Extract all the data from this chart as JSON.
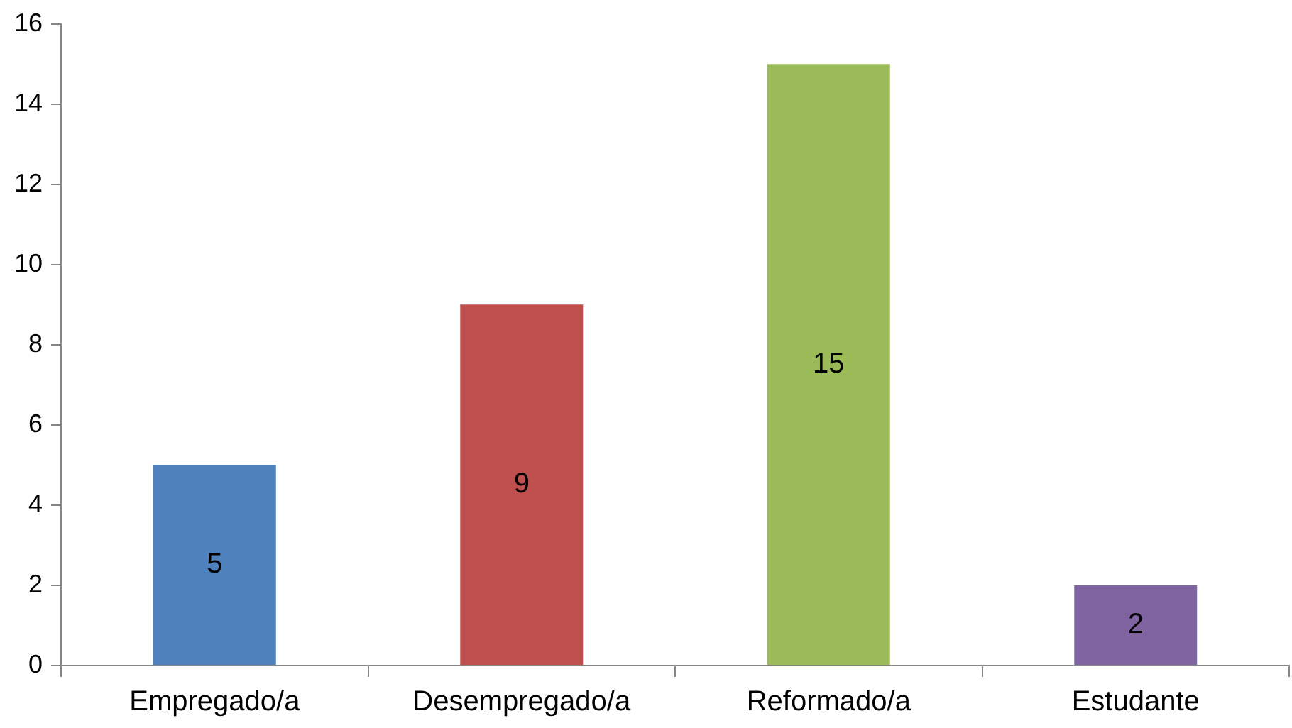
{
  "chart_data": {
    "type": "bar",
    "categories": [
      "Empregado/a",
      "Desempregado/a",
      "Reformado/a",
      "Estudante"
    ],
    "values": [
      5,
      9,
      15,
      2
    ],
    "colors": [
      "#4f81bd",
      "#c0504d",
      "#9bbb59",
      "#8064a2"
    ],
    "ylim": [
      0,
      16
    ],
    "yticks": [
      0,
      2,
      4,
      6,
      8,
      10,
      12,
      14,
      16
    ],
    "grid": false,
    "legend": false,
    "data_labels": true
  }
}
